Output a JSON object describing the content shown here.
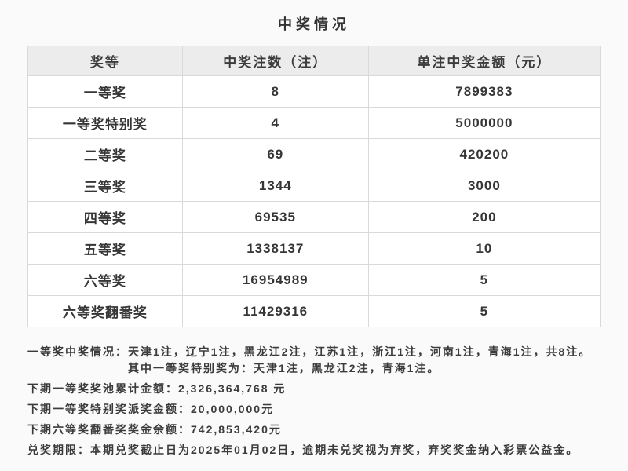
{
  "title": "中奖情况",
  "table": {
    "headers": [
      "奖等",
      "中奖注数（注）",
      "单注中奖金额（元）"
    ],
    "rows": [
      {
        "tier": "一等奖",
        "count": "8",
        "amount": "7899383"
      },
      {
        "tier": "一等奖特别奖",
        "count": "4",
        "amount": "5000000"
      },
      {
        "tier": "二等奖",
        "count": "69",
        "amount": "420200"
      },
      {
        "tier": "三等奖",
        "count": "1344",
        "amount": "3000"
      },
      {
        "tier": "四等奖",
        "count": "69535",
        "amount": "200"
      },
      {
        "tier": "五等奖",
        "count": "1338137",
        "amount": "10"
      },
      {
        "tier": "六等奖",
        "count": "16954989",
        "amount": "5"
      },
      {
        "tier": "六等奖翻番奖",
        "count": "11429316",
        "amount": "5"
      }
    ]
  },
  "notes": [
    {
      "label": "一等奖中奖情况：",
      "text": "天津1注，辽宁1注，黑龙江2注，江苏1注，浙江1注，河南1注，青海1注，共8注。其中一等奖特别奖为：天津1注，黑龙江2注，青海1注。"
    },
    {
      "label": "下期一等奖奖池累计金额：",
      "text": "2,326,364,768 元"
    },
    {
      "label": "下期一等奖特别奖派奖金额：",
      "text": "20,000,000元"
    },
    {
      "label": "下期六等奖翻番奖奖金余额：",
      "text": "742,853,420元"
    },
    {
      "label": "兑奖期限：",
      "text": "本期兑奖截止日为2025年01月02日，逾期未兑奖视为弃奖，弃奖奖金纳入彩票公益金。"
    }
  ],
  "colors": {
    "page_background": "#fafafa",
    "table_background": "#ffffff",
    "header_background": "#ececec",
    "border": "#d9d9d9",
    "text": "#3a3a3a"
  }
}
